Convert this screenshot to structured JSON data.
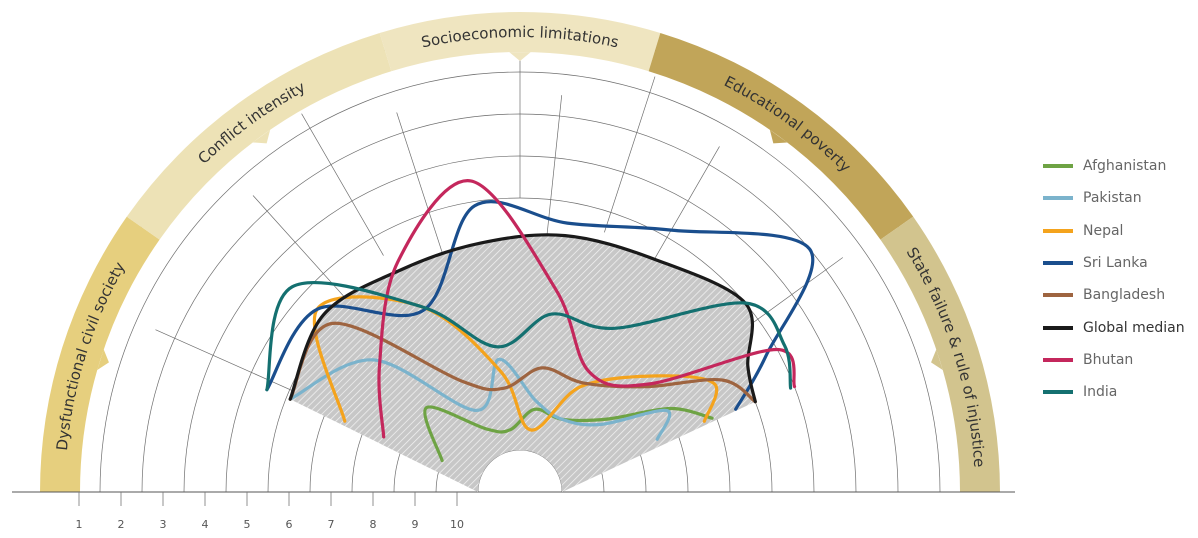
{
  "chart_data": {
    "type": "radial-line",
    "axis_labels": [
      "Dysfunctional civil society",
      "Conflict intensity",
      "Socioeconomic limitations",
      "Educational poverty",
      "State failure & rule of injustice"
    ],
    "axis_band_colors": [
      "#e6cf7e",
      "#ede2b6",
      "#efe5c0",
      "#c1a559",
      "#d2c48e"
    ],
    "radial_ticks": [
      "10",
      "9",
      "8",
      "7",
      "6",
      "5",
      "4",
      "3",
      "2",
      "1"
    ],
    "series": [
      {
        "name": "Afghanistan",
        "color": "#6ea344",
        "values": [
          9.5,
          8.5,
          9.8,
          10.0,
          9.5,
          9.5,
          8.8,
          7.4,
          6.6
        ]
      },
      {
        "name": "Pakistan",
        "color": "#7bb3cc",
        "values": [
          5.6,
          6.8,
          9.3,
          8.3,
          9.3,
          9.5,
          9.0,
          7.5,
          8.0
        ]
      },
      {
        "name": "Nepal",
        "color": "#f4a31d",
        "values": [
          7.0,
          5.0,
          6.5,
          8.6,
          10.0,
          8.6,
          7.2,
          6.2,
          6.8
        ]
      },
      {
        "name": "Sri Lanka",
        "color": "#1a4e8d",
        "values": [
          5.0,
          5.0,
          6.6,
          4.6,
          5.0,
          4.3,
          2.5,
          4.8,
          6.0
        ]
      },
      {
        "name": "Bangladesh",
        "color": "#9e6440",
        "values": [
          5.6,
          5.5,
          8.5,
          9.0,
          8.5,
          8.5,
          7.6,
          6.0,
          5.5
        ]
      },
      {
        "name": "Global median",
        "color": "#1a1a1a",
        "values": [
          5.6,
          5.2,
          5.5,
          5.5,
          5.3,
          5.1,
          4.5,
          5.3,
          5.5
        ]
      },
      {
        "name": "Bhutan",
        "color": "#c4275c",
        "values": [
          8.0,
          7.0,
          5.3,
          4.0,
          6.6,
          8.2,
          7.5,
          4.5,
          4.5
        ]
      },
      {
        "name": "India",
        "color": "#147070",
        "values": [
          5.0,
          4.2,
          6.5,
          8.0,
          7.2,
          7.0,
          4.5,
          4.3,
          4.6
        ]
      }
    ],
    "shaded_series": "Global median",
    "grid": true
  }
}
